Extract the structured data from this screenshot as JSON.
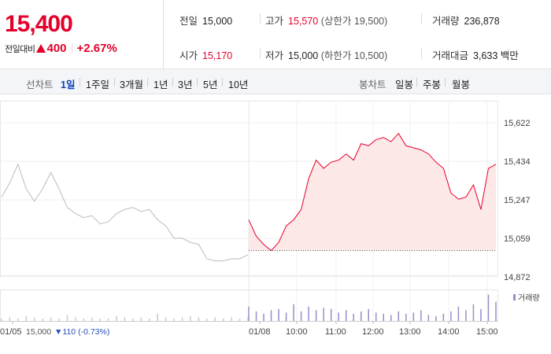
{
  "quote": {
    "price": "15,400",
    "change_label": "전일대비",
    "change_value": "400",
    "change_pct": "+2.67%",
    "direction": "up"
  },
  "stats": {
    "prev_close": {
      "label": "전일",
      "value": "15,000"
    },
    "open": {
      "label": "시가",
      "value": "15,170"
    },
    "high": {
      "label": "고가",
      "value": "15,570",
      "sub": "(상한가 19,500)"
    },
    "low": {
      "label": "저가",
      "value": "15,000",
      "sub": "(하한가 10,500)"
    },
    "volume": {
      "label": "거래량",
      "value": "236,878"
    },
    "turnover": {
      "label": "거래대금",
      "value": "3,633",
      "unit": "백만"
    }
  },
  "period_tabs": {
    "line_label": "선차트",
    "line_items": [
      "1일",
      "1주일",
      "3개월",
      "1년",
      "3년",
      "5년",
      "10년"
    ],
    "active": "1일",
    "candle_label": "봉차트",
    "candle_items": [
      "일봉",
      "주봉",
      "월봉"
    ]
  },
  "colors": {
    "up": "#e4002b",
    "down": "#2a4fb5",
    "active_tab": "#0a44b8",
    "prev_line": "#bbbbbb",
    "volume_today": "#9a8bc9",
    "volume_prev": "#c8c8c8"
  },
  "chart_data": {
    "type": "line",
    "y_ticks": [
      "15,622",
      "15,434",
      "15,247",
      "15,059",
      "14,872"
    ],
    "ylim": [
      14872,
      15622
    ],
    "x_ticks": [
      "01/05",
      "01/08",
      "10:00",
      "11:00",
      "12:00",
      "13:00",
      "14:00",
      "15:00"
    ],
    "prev_session": {
      "date": "01/05",
      "close": "15,000",
      "change": "110",
      "change_pct": "(-0.73%)",
      "values": [
        15260,
        15330,
        15420,
        15300,
        15240,
        15300,
        15380,
        15300,
        15210,
        15180,
        15160,
        15170,
        15130,
        15140,
        15180,
        15200,
        15210,
        15190,
        15200,
        15150,
        15120,
        15060,
        15060,
        15040,
        15030,
        14960,
        14950,
        14950,
        14960,
        14960,
        14980
      ]
    },
    "today_session": {
      "date": "01/08",
      "baseline": 15000,
      "values": [
        15150,
        15070,
        15030,
        15000,
        15040,
        15120,
        15150,
        15200,
        15350,
        15440,
        15400,
        15430,
        15440,
        15470,
        15440,
        15520,
        15510,
        15540,
        15550,
        15530,
        15570,
        15510,
        15500,
        15490,
        15470,
        15430,
        15400,
        15280,
        15250,
        15260,
        15320,
        15200,
        15400,
        15420
      ]
    },
    "volume_legend": "거래량",
    "volume_prev": [
      2,
      3,
      2,
      4,
      3,
      2,
      3,
      2,
      5,
      3,
      2,
      3,
      2,
      2,
      4,
      3,
      2,
      3,
      2,
      6,
      3,
      2,
      3,
      4,
      3,
      2,
      3,
      2,
      3,
      2,
      3
    ],
    "volume_today": [
      12,
      8,
      6,
      9,
      10,
      7,
      14,
      8,
      12,
      9,
      11,
      10,
      7,
      9,
      6,
      8,
      10,
      7,
      6,
      5,
      8,
      6,
      7,
      9,
      5,
      4,
      6,
      8,
      12,
      9,
      14,
      10,
      22,
      16
    ]
  }
}
